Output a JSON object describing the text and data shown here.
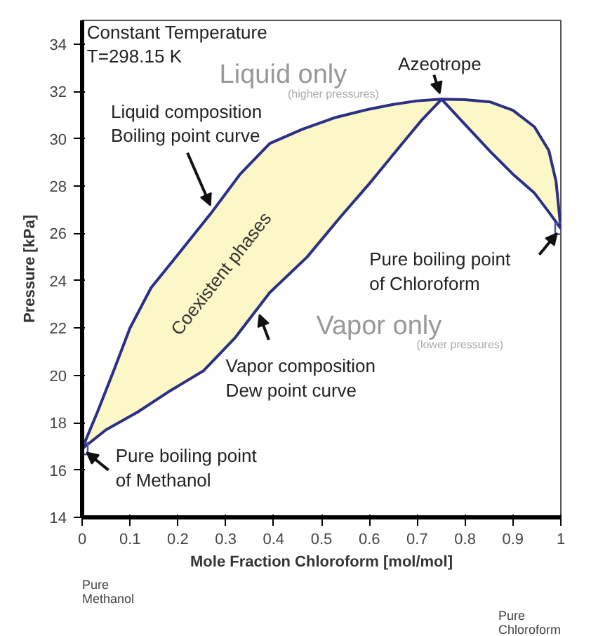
{
  "chart_data": {
    "type": "line",
    "xlabel": "Mole Fraction Chloroform [mol/mol]",
    "ylabel": "Pressure [kPa]",
    "xlim": [
      0,
      1
    ],
    "ylim": [
      14,
      35
    ],
    "xticks": [
      0,
      0.1,
      0.2,
      0.3,
      0.4,
      0.5,
      0.6,
      0.7,
      0.8,
      0.9,
      1
    ],
    "yticks": [
      14,
      16,
      18,
      20,
      22,
      24,
      26,
      28,
      30,
      32,
      34
    ],
    "grid": false,
    "line_style": "solid",
    "series": [
      {
        "color": "#2b2f86",
        "x": [
          0,
          0.033,
          0.066,
          0.1,
          0.144,
          0.2,
          0.273,
          0.33,
          0.392,
          0.46,
          0.53,
          0.6,
          0.65,
          0.7,
          0.751,
          0.8,
          0.853,
          0.9,
          0.945,
          0.975,
          0.99,
          1.0
        ],
        "values": [
          16.9,
          18.5,
          20.2,
          22.0,
          23.7,
          25.1,
          26.95,
          28.5,
          29.8,
          30.4,
          30.9,
          31.25,
          31.45,
          31.6,
          31.67,
          31.65,
          31.55,
          31.2,
          30.5,
          29.5,
          28.2,
          26.2
        ],
        "lower": [
          16.9,
          17.4,
          17.95,
          18.3,
          18.8,
          19.55,
          20.55,
          21.85,
          23.5,
          24.8,
          26.4,
          28.1,
          29.4,
          30.5,
          31.67,
          30.6,
          29.45,
          28.5,
          27.7,
          26.9,
          26.5,
          26.2
        ],
        "upper": [
          16.9,
          18.5,
          20.2,
          22.0,
          23.7,
          25.1,
          26.95,
          28.5,
          29.8,
          30.4,
          30.9,
          31.25,
          31.45,
          31.6,
          31.67,
          31.65,
          31.55,
          31.2,
          30.5,
          29.5,
          28.2,
          26.2
        ]
      },
      {
        "color": "#2b2f86",
        "x": [
          0,
          0.05,
          0.116,
          0.18,
          0.254,
          0.32,
          0.392,
          0.47,
          0.54,
          0.6,
          0.669,
          0.71,
          0.751,
          0.8,
          0.853,
          0.9,
          0.945,
          0.975,
          1.0
        ],
        "values": [
          16.9,
          17.7,
          18.45,
          19.3,
          20.2,
          21.6,
          23.5,
          25.0,
          26.7,
          28.1,
          29.8,
          30.8,
          31.67,
          30.6,
          29.45,
          28.5,
          27.7,
          26.9,
          26.2
        ]
      },
      {
        "type": "scatter",
        "marker": "square",
        "color": "#4a4fa8",
        "x": [
          0,
          1
        ],
        "values": [
          16.9,
          26.2
        ]
      }
    ],
    "annotations": [
      "Constant Temperature\nT=298.15 K",
      "Liquid only",
      "(higher pressures)",
      {
        "text": "Azeotrope",
        "x": 0.751,
        "y": 31.67
      },
      {
        "text": "Liquid composition\nBoiling point curve",
        "x": 0.273,
        "y": 26.95
      },
      "Coexistent phases",
      {
        "text": "Pure boiling point\nof Chloroform",
        "x": 1,
        "y": 26.2
      },
      "Vapor only",
      "(lower pressures)",
      {
        "text": "Vapor composition\nDew point curve",
        "x": 0.366,
        "y": 22.8
      },
      {
        "text": "Pure boiling point\nof Methanol",
        "x": 0,
        "y": 16.9
      },
      "Pure\nMethanol",
      "Pure\nChloroform"
    ]
  }
}
